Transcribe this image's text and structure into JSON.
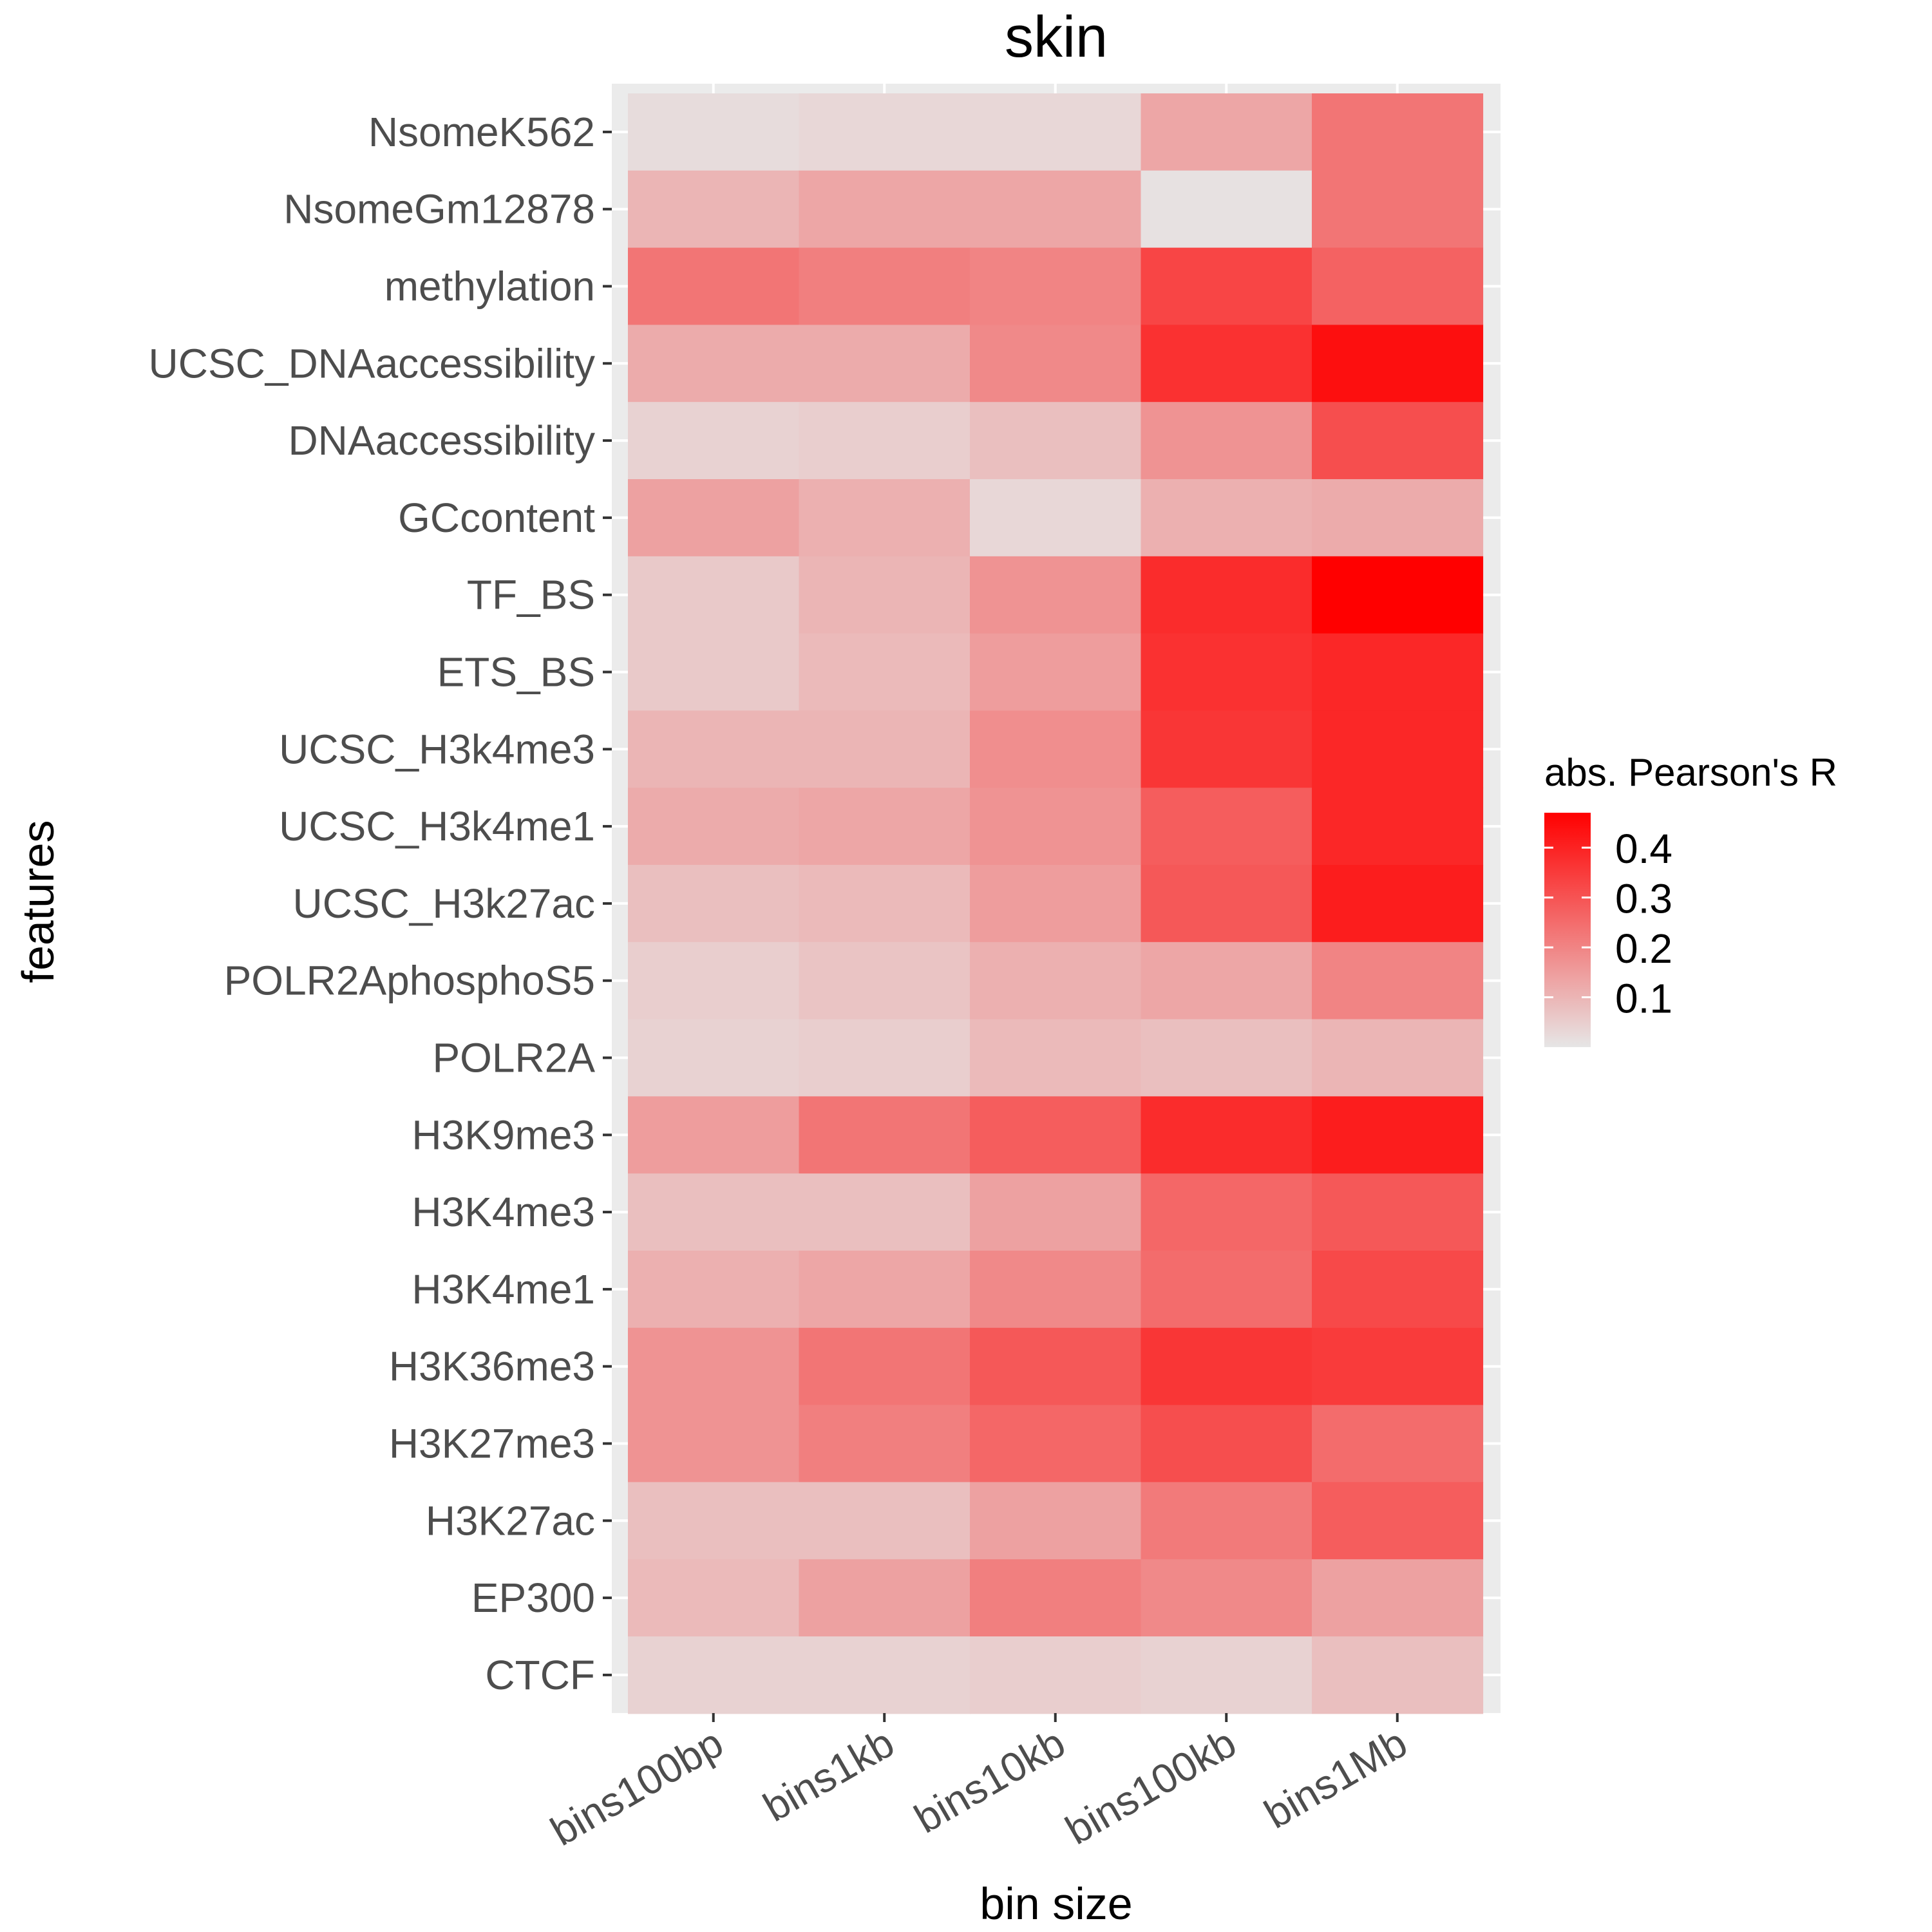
{
  "chart_data": {
    "type": "heatmap",
    "title": "skin",
    "xlabel": "bin size",
    "ylabel": "features",
    "categories": [
      "bins100bp",
      "bins1kb",
      "bins10kb",
      "bins100kb",
      "bins1Mb"
    ],
    "rows": [
      "NsomeK562",
      "NsomeGm12878",
      "methylation",
      "UCSC_DNAaccessibility",
      "DNAaccessibility",
      "GCcontent",
      "TF_BS",
      "ETS_BS",
      "UCSC_H3k4me3",
      "UCSC_H3k4me1",
      "UCSC_H3k27ac",
      "POLR2AphosphoS5",
      "POLR2A",
      "H3K9me3",
      "H3K4me3",
      "H3K4me1",
      "H3K36me3",
      "H3K27me3",
      "H3K27ac",
      "EP300",
      "CTCF"
    ],
    "values": [
      [
        0.02,
        0.03,
        0.03,
        0.13,
        0.23
      ],
      [
        0.1,
        0.13,
        0.13,
        0.01,
        0.23
      ],
      [
        0.23,
        0.21,
        0.2,
        0.33,
        0.27
      ],
      [
        0.12,
        0.12,
        0.19,
        0.37,
        0.44
      ],
      [
        0.04,
        0.05,
        0.08,
        0.17,
        0.31
      ],
      [
        0.14,
        0.11,
        0.03,
        0.11,
        0.12
      ],
      [
        0.06,
        0.1,
        0.17,
        0.38,
        0.47
      ],
      [
        0.06,
        0.09,
        0.15,
        0.37,
        0.39
      ],
      [
        0.1,
        0.1,
        0.18,
        0.36,
        0.39
      ],
      [
        0.12,
        0.13,
        0.17,
        0.28,
        0.39
      ],
      [
        0.08,
        0.09,
        0.15,
        0.29,
        0.41
      ],
      [
        0.05,
        0.07,
        0.11,
        0.13,
        0.2
      ],
      [
        0.04,
        0.05,
        0.09,
        0.08,
        0.1
      ],
      [
        0.15,
        0.23,
        0.28,
        0.38,
        0.41
      ],
      [
        0.08,
        0.08,
        0.14,
        0.26,
        0.29
      ],
      [
        0.11,
        0.13,
        0.19,
        0.25,
        0.32
      ],
      [
        0.17,
        0.23,
        0.29,
        0.36,
        0.35
      ],
      [
        0.17,
        0.21,
        0.26,
        0.31,
        0.25
      ],
      [
        0.08,
        0.08,
        0.14,
        0.22,
        0.28
      ],
      [
        0.09,
        0.14,
        0.21,
        0.19,
        0.14
      ],
      [
        0.04,
        0.04,
        0.05,
        0.04,
        0.08
      ]
    ],
    "legend": {
      "title": "abs. Pearson's R",
      "ticks": [
        "0.1",
        "0.2",
        "0.3",
        "0.4"
      ],
      "tick_values": [
        0.1,
        0.2,
        0.3,
        0.4
      ],
      "range": [
        0.0,
        0.47
      ],
      "placement": "right"
    },
    "color_low": "#e6e6e6",
    "color_high": "#ff0000",
    "panel_background": "#ebebeb",
    "grid": true
  }
}
